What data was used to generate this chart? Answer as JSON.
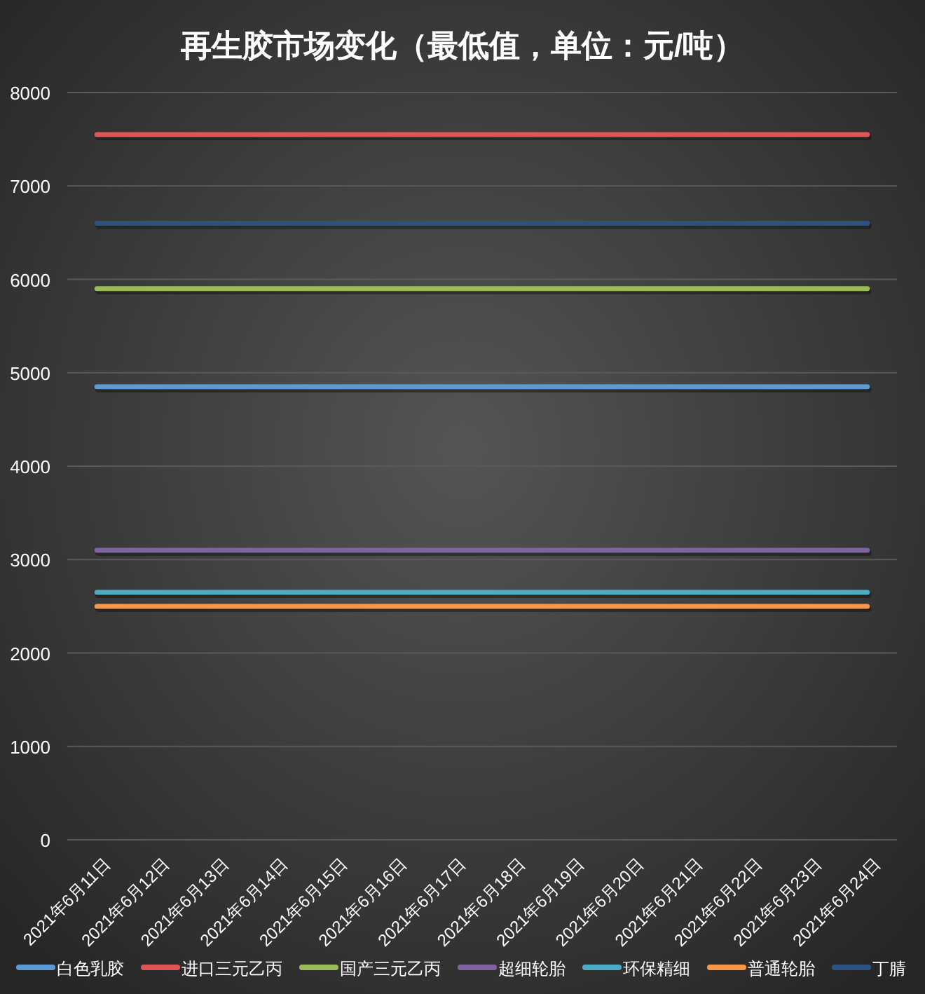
{
  "chart_data": {
    "type": "line",
    "title": "再生胶市场变化（最低值，单位：元/吨）",
    "categories": [
      "2021年6月11日",
      "2021年6月12日",
      "2021年6月13日",
      "2021年6月14日",
      "2021年6月15日",
      "2021年6月16日",
      "2021年6月17日",
      "2021年6月18日",
      "2021年6月19日",
      "2021年6月20日",
      "2021年6月21日",
      "2021年6月22日",
      "2021年6月23日",
      "2021年6月24日"
    ],
    "series": [
      {
        "name": "白色乳胶",
        "color": "#5b9bd5",
        "values": [
          4850,
          4850,
          4850,
          4850,
          4850,
          4850,
          4850,
          4850,
          4850,
          4850,
          4850,
          4850,
          4850,
          4850
        ]
      },
      {
        "name": "进口三元乙丙",
        "color": "#e05555",
        "values": [
          7550,
          7550,
          7550,
          7550,
          7550,
          7550,
          7550,
          7550,
          7550,
          7550,
          7550,
          7550,
          7550,
          7550
        ]
      },
      {
        "name": "国产三元乙丙",
        "color": "#9bbb59",
        "values": [
          5900,
          5900,
          5900,
          5900,
          5900,
          5900,
          5900,
          5900,
          5900,
          5900,
          5900,
          5900,
          5900,
          5900
        ]
      },
      {
        "name": "超细轮胎",
        "color": "#8064a2",
        "values": [
          3100,
          3100,
          3100,
          3100,
          3100,
          3100,
          3100,
          3100,
          3100,
          3100,
          3100,
          3100,
          3100,
          3100
        ]
      },
      {
        "name": "环保精细",
        "color": "#4bacc6",
        "values": [
          2650,
          2650,
          2650,
          2650,
          2650,
          2650,
          2650,
          2650,
          2650,
          2650,
          2650,
          2650,
          2650,
          2650
        ]
      },
      {
        "name": "普通轮胎",
        "color": "#f79646",
        "values": [
          2500,
          2500,
          2500,
          2500,
          2500,
          2500,
          2500,
          2500,
          2500,
          2500,
          2500,
          2500,
          2500,
          2500
        ]
      },
      {
        "name": "丁腈",
        "color": "#2c5282",
        "values": [
          6600,
          6600,
          6600,
          6600,
          6600,
          6600,
          6600,
          6600,
          6600,
          6600,
          6600,
          6600,
          6600,
          6600
        ]
      }
    ],
    "ylim": [
      0,
      8000
    ],
    "yticks": [
      0,
      1000,
      2000,
      3000,
      4000,
      5000,
      6000,
      7000,
      8000
    ],
    "grid": "y",
    "legend": "bottom"
  }
}
